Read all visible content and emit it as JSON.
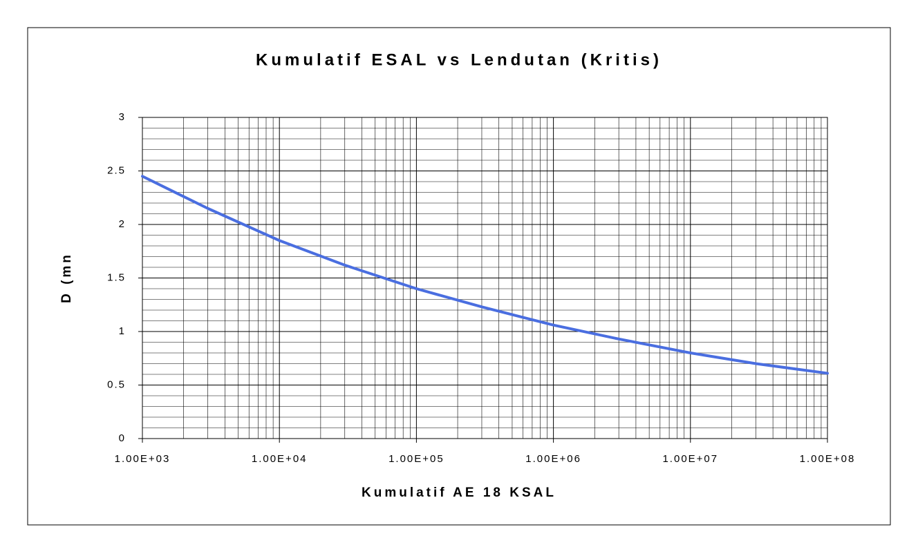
{
  "chart_data": {
    "type": "line",
    "title": "Kumulatif ESAL vs Lendutan (Kritis)",
    "x_label": "Kumulatif AE 18 KSAL",
    "y_label": "D (mn",
    "x": [
      1000,
      3000,
      10000,
      30000,
      100000,
      300000,
      1000000,
      3000000,
      10000000,
      30000000,
      100000000
    ],
    "series": [
      {
        "name": "D",
        "color": "#4a6ee0",
        "values": [
          2.45,
          2.15,
          1.85,
          1.62,
          1.4,
          1.23,
          1.06,
          0.93,
          0.8,
          0.7,
          0.61
        ]
      }
    ],
    "xlog": true,
    "xlim": [
      1000,
      100000000
    ],
    "xticks": [
      {
        "value": 1000,
        "label": "1.00E+03"
      },
      {
        "value": 10000,
        "label": "1.00E+04"
      },
      {
        "value": 100000,
        "label": "1.00E+05"
      },
      {
        "value": 1000000,
        "label": "1.00E+06"
      },
      {
        "value": 10000000,
        "label": "1.00E+07"
      },
      {
        "value": 100000000,
        "label": "1.00E+08"
      }
    ],
    "ylim": [
      0,
      3
    ],
    "yticks": [
      0,
      0.5,
      1,
      1.5,
      2,
      2.5,
      3
    ],
    "grid": true,
    "minor_grid": true
  }
}
